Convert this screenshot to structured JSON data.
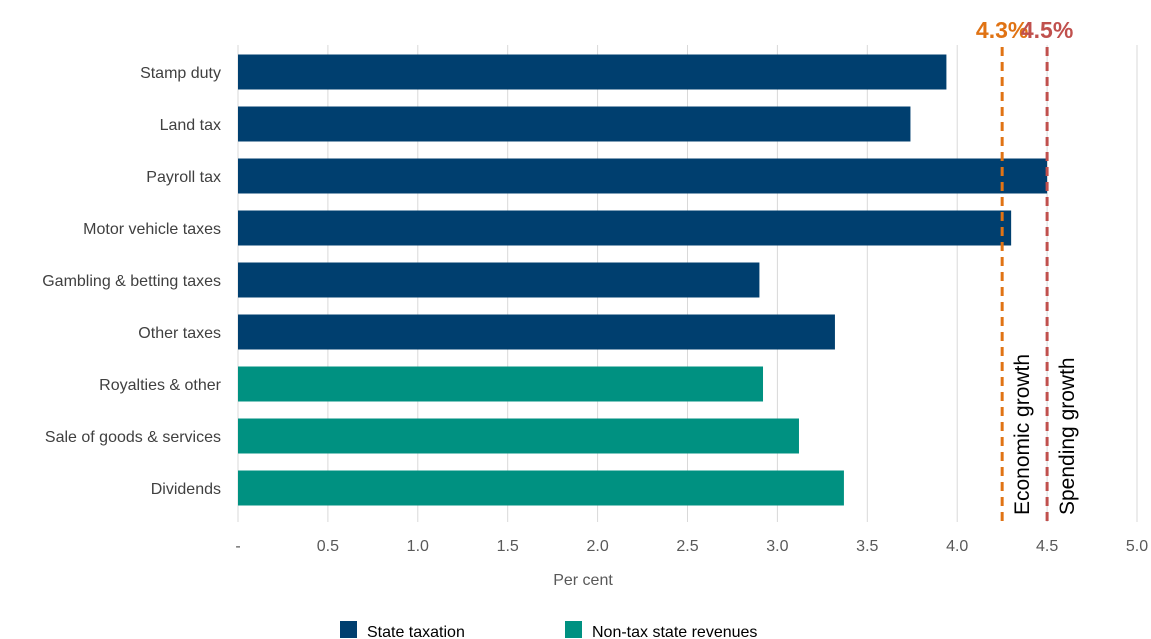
{
  "chart_data": {
    "type": "bar",
    "orientation": "horizontal",
    "categories": [
      "Stamp duty",
      "Land tax",
      "Payroll tax",
      "Motor vehicle taxes",
      "Gambling & betting taxes",
      "Other taxes",
      "Royalties & other",
      "Sale of goods & services",
      "Dividends"
    ],
    "values": [
      3.94,
      3.74,
      4.5,
      4.3,
      2.9,
      3.32,
      2.92,
      3.12,
      3.37
    ],
    "groups": [
      "State taxation",
      "State taxation",
      "State taxation",
      "State taxation",
      "State taxation",
      "State taxation",
      "Non-tax state revenues",
      "Non-tax state revenues",
      "Non-tax state revenues"
    ],
    "series": [
      {
        "name": "State taxation",
        "color": "#003f6f"
      },
      {
        "name": "Non-tax state revenues",
        "color": "#009181"
      }
    ],
    "xlabel": "Per cent",
    "ylabel": "",
    "xlim": [
      0,
      5
    ],
    "x_ticks": [
      0,
      0.5,
      1,
      1.5,
      2,
      2.5,
      3,
      3.5,
      4,
      4.5,
      5
    ],
    "x_tick_labels": [
      "-",
      "0.5",
      "1.0",
      "1.5",
      "2.0",
      "2.5",
      "3.0",
      "3.5",
      "4.0",
      "4.5",
      "5.0"
    ],
    "grid": "vertical",
    "legend_position": "bottom",
    "reference_lines": [
      {
        "name": "Economic growth",
        "value": 4.25,
        "value_label": "4.3%",
        "color": "#e07314"
      },
      {
        "name": "Spending growth",
        "value": 4.5,
        "value_label": "4.5%",
        "color": "#c0504d"
      }
    ]
  }
}
